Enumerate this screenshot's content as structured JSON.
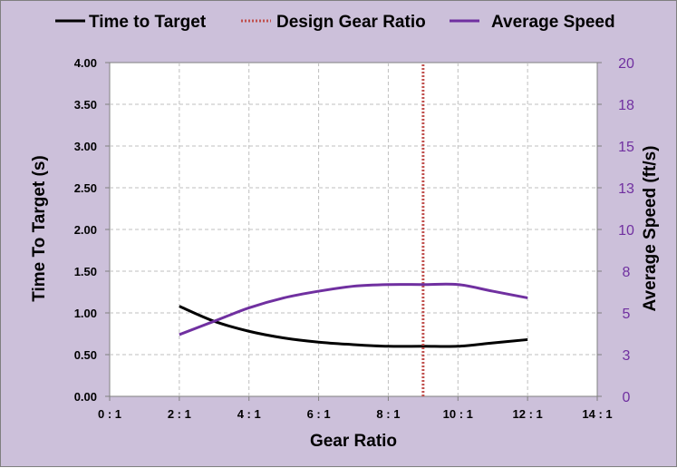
{
  "chart_data": {
    "type": "line",
    "title": "",
    "xlabel": "Gear Ratio",
    "ylabel": "Time To Target (s)",
    "y2label": "Average Speed (ft/s)",
    "xlim": [
      0,
      14
    ],
    "ylim": [
      0,
      4
    ],
    "y2lim": [
      0,
      20
    ],
    "x_ticks": [
      0,
      2,
      4,
      6,
      8,
      10,
      12,
      14
    ],
    "x_tick_labels": [
      "0 : 1",
      "2 : 1",
      "4 : 1",
      "6 : 1",
      "8 : 1",
      "10 : 1",
      "12 : 1",
      "14 : 1"
    ],
    "y_ticks": [
      0,
      0.5,
      1,
      1.5,
      2,
      2.5,
      3,
      3.5,
      4
    ],
    "y_tick_labels": [
      "0.00",
      "0.50",
      "1.00",
      "1.50",
      "2.00",
      "2.50",
      "3.00",
      "3.50",
      "4.00"
    ],
    "y2_ticks": [
      0,
      2.5,
      5,
      7.5,
      10,
      12.5,
      15,
      17.5,
      20
    ],
    "y2_tick_labels": [
      "0",
      "3",
      "5",
      "8",
      "10",
      "13",
      "15",
      "18",
      "20"
    ],
    "grid": true,
    "legend_position": "top",
    "series": [
      {
        "name": "Time to Target",
        "axis": "left",
        "color": "#000000",
        "x": [
          2,
          3,
          4,
          5,
          6,
          7,
          8,
          9,
          10,
          11,
          12
        ],
        "y": [
          1.08,
          0.9,
          0.78,
          0.7,
          0.65,
          0.62,
          0.6,
          0.6,
          0.6,
          0.64,
          0.68
        ]
      },
      {
        "name": "Design Gear Ratio",
        "axis": "left",
        "color": "#c0504d",
        "style": "dotted",
        "x": [
          9,
          9
        ],
        "y": [
          0,
          4
        ]
      },
      {
        "name": "Average Speed",
        "axis": "right",
        "color": "#7030a0",
        "x": [
          2,
          3,
          4,
          5,
          6,
          7,
          8,
          9,
          10,
          11,
          12
        ],
        "y": [
          3.7,
          4.5,
          5.3,
          5.9,
          6.3,
          6.6,
          6.7,
          6.7,
          6.7,
          6.3,
          5.9
        ]
      }
    ],
    "colors": {
      "background": "#ccc0da",
      "plot_background": "#ffffff",
      "right_axis": "#7030a0",
      "grid": "#bfbfbf"
    }
  }
}
